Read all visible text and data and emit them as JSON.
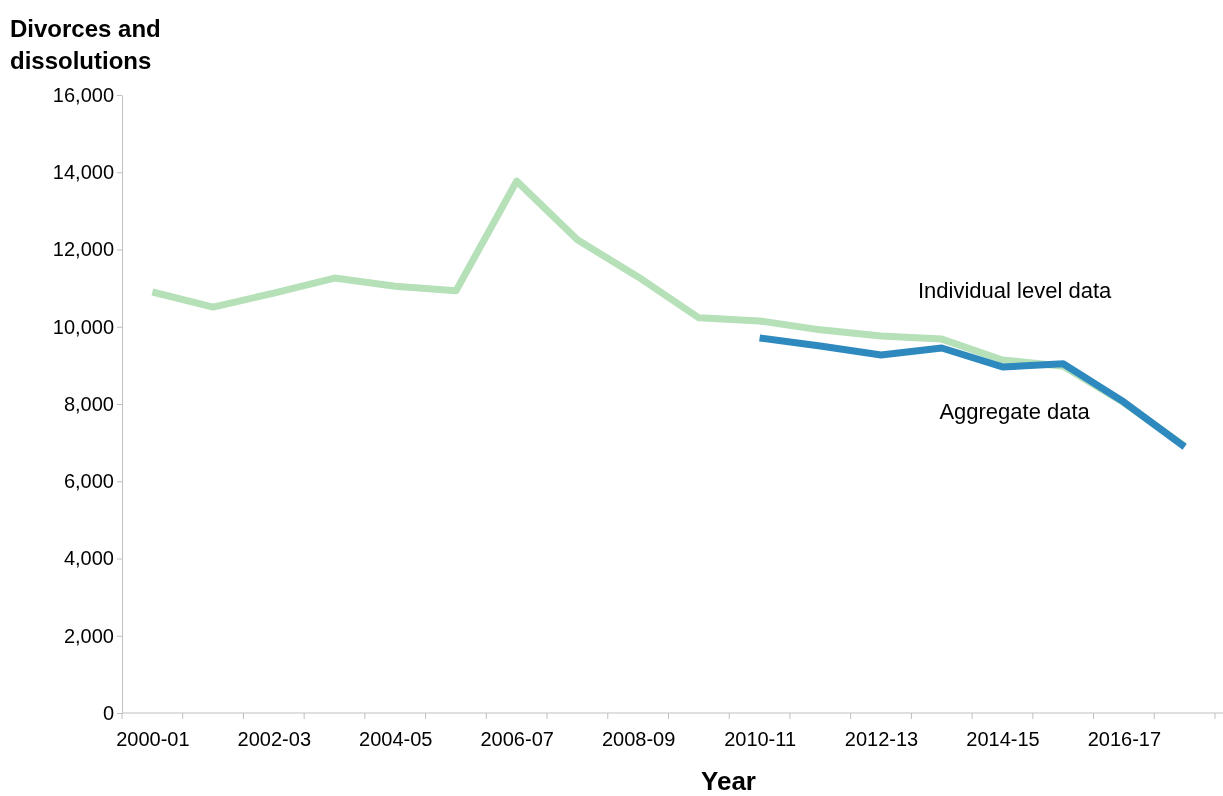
{
  "chart_data": {
    "type": "line",
    "xlabel": "Year",
    "ylabel": "Divorces and dissolutions",
    "categories": [
      "2000-01",
      null,
      "2002-03",
      null,
      "2004-05",
      null,
      "2006-07",
      null,
      "2008-09",
      null,
      "2010-11",
      null,
      "2012-13",
      null,
      "2014-15",
      null,
      "2016-17",
      null
    ],
    "series": [
      {
        "name": "Individual level data",
        "color": "#b5e0b8",
        "values": [
          10900,
          10510,
          10870,
          11260,
          11050,
          10930,
          13770,
          12250,
          11290,
          10230,
          10150,
          9920,
          9760,
          9680,
          9140,
          8980,
          8030,
          6910
        ]
      },
      {
        "name": "Aggregate data",
        "color": "#2e89bf",
        "values": [
          null,
          null,
          null,
          null,
          null,
          null,
          null,
          null,
          null,
          null,
          9710,
          9500,
          9270,
          9450,
          8960,
          9040,
          8050,
          6890
        ]
      }
    ],
    "ylim": [
      0,
      16000
    ],
    "yticks": [
      {
        "value": 0,
        "label": "0"
      },
      {
        "value": 2000,
        "label": "2,000"
      },
      {
        "value": 4000,
        "label": "4,000"
      },
      {
        "value": 6000,
        "label": "6,000"
      },
      {
        "value": 8000,
        "label": "8,000"
      },
      {
        "value": 10000,
        "label": "10,000"
      },
      {
        "value": 12000,
        "label": "12,000"
      },
      {
        "value": 14000,
        "label": "14,000"
      },
      {
        "value": 16000,
        "label": "16,000"
      }
    ],
    "grid": false,
    "legend": false,
    "line_style": "solid",
    "marker": "none"
  }
}
